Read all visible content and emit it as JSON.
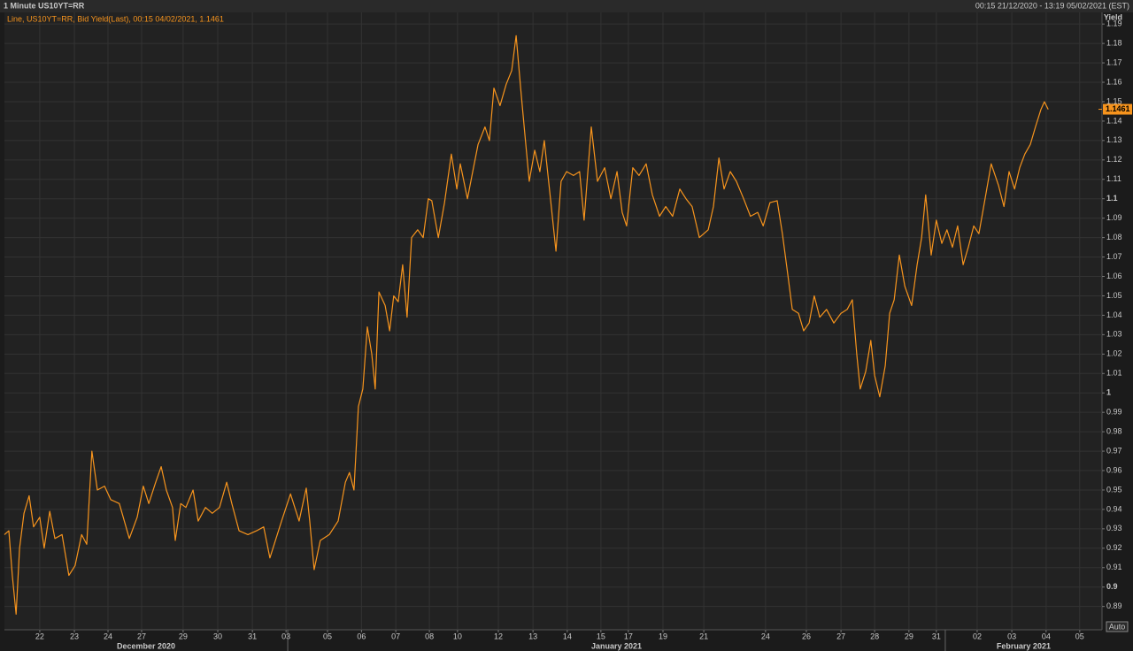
{
  "chart_data": {
    "type": "line",
    "header_left": "1 Minute US10YT=RR",
    "header_right": "00:15 21/12/2020 - 13:19 05/02/2021 (EST)",
    "y_label": "Yield",
    "auto_button": "Auto",
    "grid": true,
    "xlim": [
      0,
      32
    ],
    "ylim": [
      0.878,
      1.196
    ],
    "yticks": [
      0.89,
      0.9,
      0.91,
      0.92,
      0.93,
      0.94,
      0.95,
      0.96,
      0.97,
      0.98,
      0.99,
      1,
      1.01,
      1.02,
      1.03,
      1.04,
      1.05,
      1.06,
      1.07,
      1.08,
      1.09,
      1.1,
      1.11,
      1.12,
      1.13,
      1.14,
      1.15,
      1.16,
      1.17,
      1.18,
      1.19
    ],
    "xticks": [
      {
        "value": 1.03,
        "label": "22"
      },
      {
        "value": 2.04,
        "label": "23"
      },
      {
        "value": 3.02,
        "label": "24"
      },
      {
        "value": 4.0,
        "label": "27"
      },
      {
        "value": 5.21,
        "label": "29"
      },
      {
        "value": 6.22,
        "label": "30"
      },
      {
        "value": 7.23,
        "label": "31"
      },
      {
        "value": 8.21,
        "label": "03"
      },
      {
        "value": 9.42,
        "label": "05"
      },
      {
        "value": 10.41,
        "label": "06"
      },
      {
        "value": 11.41,
        "label": "07"
      },
      {
        "value": 12.39,
        "label": "08"
      },
      {
        "value": 13.21,
        "label": "10"
      },
      {
        "value": 14.4,
        "label": "12"
      },
      {
        "value": 15.41,
        "label": "13"
      },
      {
        "value": 16.41,
        "label": "14"
      },
      {
        "value": 17.39,
        "label": "15"
      },
      {
        "value": 18.19,
        "label": "17"
      },
      {
        "value": 19.2,
        "label": "19"
      },
      {
        "value": 20.39,
        "label": "21"
      },
      {
        "value": 22.19,
        "label": "24"
      },
      {
        "value": 23.38,
        "label": "26"
      },
      {
        "value": 24.39,
        "label": "27"
      },
      {
        "value": 25.37,
        "label": "28"
      },
      {
        "value": 26.37,
        "label": "29"
      },
      {
        "value": 27.17,
        "label": "31"
      },
      {
        "value": 28.36,
        "label": "02"
      },
      {
        "value": 29.37,
        "label": "03"
      },
      {
        "value": 30.37,
        "label": "04"
      },
      {
        "value": 31.35,
        "label": "05"
      }
    ],
    "x_groups": [
      {
        "label": "December 2020",
        "start": 0,
        "end": 8.26
      },
      {
        "label": "January 2021",
        "start": 8.26,
        "end": 27.43
      },
      {
        "label": "February 2021",
        "start": 27.43,
        "end": 32
      }
    ],
    "last_value": 1.1461,
    "series": [
      {
        "name": "Line, US10YT=RR, Bid Yield(Last), 00:15 04/02/2021, 1.1461",
        "color": "#f7941d",
        "x": [
          0.0,
          0.13,
          0.23,
          0.34,
          0.44,
          0.57,
          0.72,
          0.85,
          1.03,
          1.16,
          1.32,
          1.47,
          1.68,
          1.88,
          2.06,
          2.25,
          2.4,
          2.55,
          2.71,
          2.92,
          3.1,
          3.35,
          3.64,
          3.87,
          4.05,
          4.21,
          4.41,
          4.57,
          4.72,
          4.9,
          4.98,
          5.14,
          5.29,
          5.5,
          5.65,
          5.86,
          6.06,
          6.27,
          6.48,
          6.63,
          6.84,
          7.1,
          7.35,
          7.56,
          7.74,
          8.08,
          8.34,
          8.59,
          8.8,
          8.9,
          9.03,
          9.21,
          9.47,
          9.73,
          9.94,
          10.06,
          10.19,
          10.32,
          10.45,
          10.58,
          10.71,
          10.81,
          10.92,
          11.1,
          11.23,
          11.35,
          11.48,
          11.61,
          11.74,
          11.87,
          12.05,
          12.21,
          12.36,
          12.46,
          12.65,
          12.83,
          13.03,
          13.19,
          13.29,
          13.5,
          13.63,
          13.81,
          14.01,
          14.14,
          14.27,
          14.45,
          14.63,
          14.79,
          14.92,
          15.05,
          15.17,
          15.3,
          15.46,
          15.61,
          15.74,
          15.92,
          16.08,
          16.23,
          16.39,
          16.59,
          16.77,
          16.9,
          17.11,
          17.29,
          17.5,
          17.68,
          17.86,
          18.01,
          18.14,
          18.32,
          18.5,
          18.71,
          18.89,
          19.1,
          19.28,
          19.48,
          19.69,
          19.87,
          20.05,
          20.26,
          20.52,
          20.67,
          20.83,
          20.98,
          21.16,
          21.34,
          21.55,
          21.75,
          21.96,
          22.12,
          22.32,
          22.53,
          22.68,
          22.84,
          22.97,
          23.15,
          23.3,
          23.46,
          23.61,
          23.77,
          23.97,
          24.18,
          24.39,
          24.57,
          24.72,
          24.85,
          24.95,
          25.11,
          25.26,
          25.37,
          25.52,
          25.68,
          25.81,
          25.94,
          26.09,
          26.25,
          26.45,
          26.61,
          26.74,
          26.86,
          27.02,
          27.17,
          27.33,
          27.48,
          27.64,
          27.79,
          27.95,
          28.1,
          28.26,
          28.41,
          28.57,
          28.77,
          28.98,
          29.14,
          29.29,
          29.45,
          29.6,
          29.75,
          29.91,
          30.06,
          30.22,
          30.32,
          30.43
        ],
        "values": [
          0.927,
          0.929,
          0.906,
          0.886,
          0.92,
          0.938,
          0.947,
          0.931,
          0.936,
          0.92,
          0.939,
          0.925,
          0.927,
          0.906,
          0.911,
          0.927,
          0.922,
          0.97,
          0.95,
          0.952,
          0.945,
          0.943,
          0.925,
          0.936,
          0.952,
          0.943,
          0.954,
          0.962,
          0.95,
          0.941,
          0.924,
          0.943,
          0.941,
          0.95,
          0.934,
          0.941,
          0.938,
          0.941,
          0.954,
          0.943,
          0.929,
          0.927,
          0.929,
          0.931,
          0.915,
          0.934,
          0.948,
          0.934,
          0.951,
          0.934,
          0.909,
          0.924,
          0.927,
          0.934,
          0.954,
          0.959,
          0.95,
          0.993,
          1.002,
          1.034,
          1.02,
          1.002,
          1.052,
          1.045,
          1.032,
          1.05,
          1.047,
          1.066,
          1.039,
          1.08,
          1.084,
          1.08,
          1.1,
          1.099,
          1.08,
          1.098,
          1.123,
          1.105,
          1.118,
          1.1,
          1.112,
          1.128,
          1.137,
          1.13,
          1.157,
          1.148,
          1.159,
          1.166,
          1.184,
          1.157,
          1.134,
          1.109,
          1.125,
          1.114,
          1.13,
          1.1,
          1.073,
          1.109,
          1.114,
          1.112,
          1.114,
          1.089,
          1.137,
          1.109,
          1.116,
          1.1,
          1.114,
          1.093,
          1.086,
          1.116,
          1.112,
          1.118,
          1.102,
          1.091,
          1.096,
          1.091,
          1.105,
          1.1,
          1.096,
          1.08,
          1.084,
          1.096,
          1.121,
          1.105,
          1.114,
          1.109,
          1.1,
          1.091,
          1.093,
          1.086,
          1.098,
          1.099,
          1.082,
          1.061,
          1.043,
          1.041,
          1.032,
          1.036,
          1.05,
          1.039,
          1.043,
          1.036,
          1.041,
          1.043,
          1.048,
          1.02,
          1.002,
          1.011,
          1.027,
          1.009,
          0.998,
          1.014,
          1.041,
          1.048,
          1.071,
          1.055,
          1.045,
          1.066,
          1.08,
          1.102,
          1.071,
          1.089,
          1.077,
          1.084,
          1.075,
          1.086,
          1.066,
          1.075,
          1.086,
          1.082,
          1.098,
          1.118,
          1.107,
          1.096,
          1.114,
          1.105,
          1.116,
          1.123,
          1.128,
          1.137,
          1.146,
          1.15,
          1.146
        ]
      }
    ]
  }
}
